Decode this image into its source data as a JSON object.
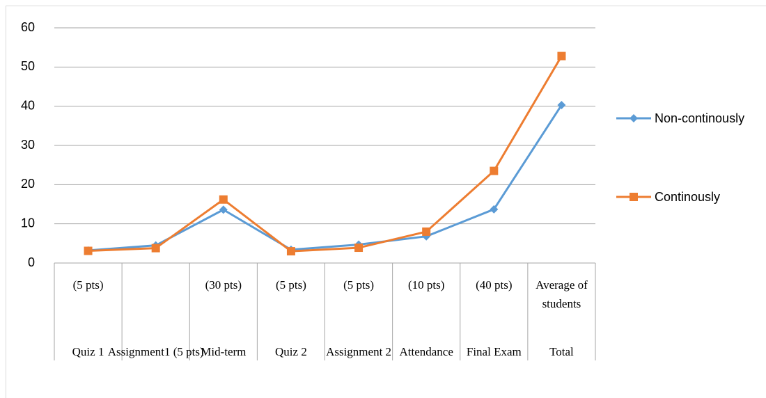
{
  "chart_data": {
    "type": "line",
    "categories": [
      "Quiz 1",
      "Assignment1 (5 pts)",
      "Mid-term",
      "Quiz 2",
      "Assignment 2",
      "Attendance",
      "Final Exam",
      "Total"
    ],
    "subcategories": [
      "(5 pts)",
      null,
      "(30 pts)",
      "(5 pts)",
      "(5 pts)",
      "(10 pts)",
      "(40 pts)",
      "Average of students"
    ],
    "series": [
      {
        "name": "Non-continously",
        "color": "#5b9bd5",
        "marker": "diamond",
        "values": [
          3.2,
          4.5,
          13.6,
          3.4,
          4.7,
          6.8,
          13.7,
          40.3
        ]
      },
      {
        "name": "Continously",
        "color": "#ed7d31",
        "marker": "square",
        "values": [
          3.1,
          3.8,
          16.2,
          3.0,
          3.9,
          8.0,
          23.5,
          52.8
        ]
      }
    ],
    "ylim": [
      0,
      60
    ],
    "yticks": [
      0,
      10,
      20,
      30,
      40,
      50,
      60
    ],
    "grid": true,
    "legend": "right"
  }
}
